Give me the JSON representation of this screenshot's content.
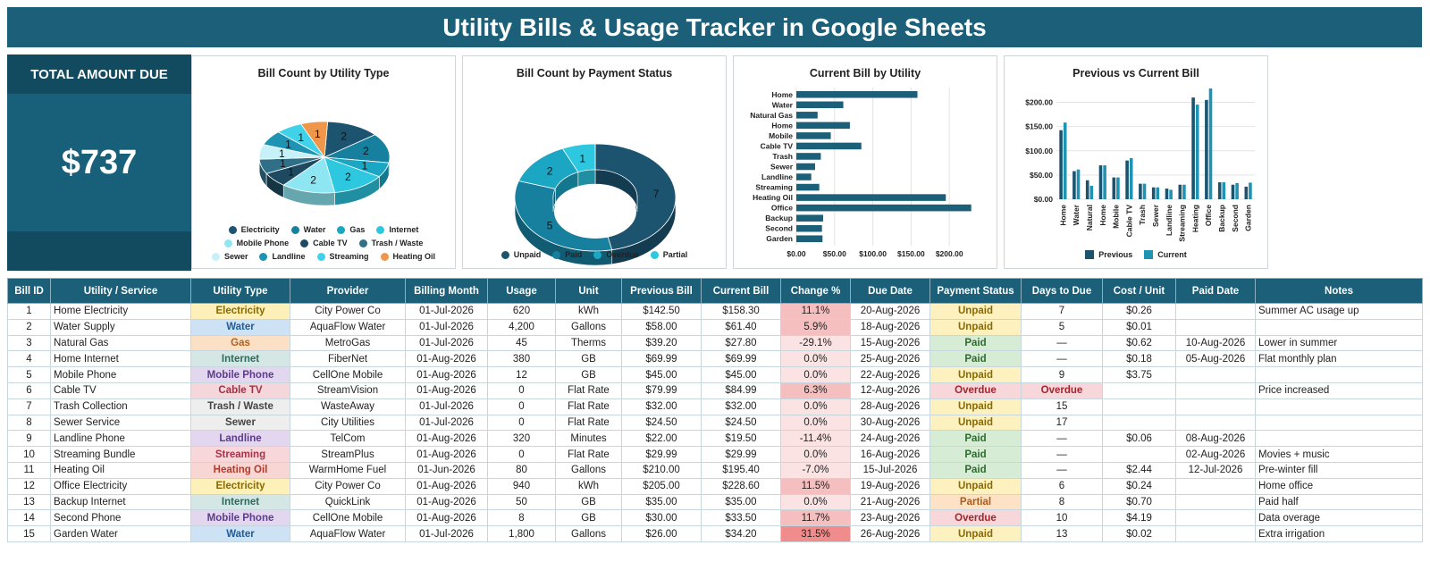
{
  "header": {
    "title": "Utility Bills & Usage Tracker in Google Sheets"
  },
  "total": {
    "label": "TOTAL AMOUNT DUE",
    "amount": "$737"
  },
  "colors": {
    "dark": "#1b5f78",
    "electricity": "#1c5470",
    "water": "#18809f",
    "gas": "#1ba6c4",
    "internet": "#2dc7e0",
    "mobile_phone": "#8ee6f3",
    "cable_tv": "#1d4a60",
    "trash": "#2f6f88",
    "sewer": "#c6f1f8",
    "landline": "#1e93b3",
    "streaming": "#3fd2e8",
    "heating_oil": "#f0964b"
  },
  "charts": {
    "utility_pie": {
      "title": "Bill Count by Utility Type",
      "legend": [
        {
          "label": "Electricity",
          "color": "#1c5470"
        },
        {
          "label": "Water",
          "color": "#18809f"
        },
        {
          "label": "Gas",
          "color": "#1ba6c4"
        },
        {
          "label": "Internet",
          "color": "#2dc7e0"
        },
        {
          "label": "Mobile Phone",
          "color": "#8ee6f3"
        },
        {
          "label": "Cable TV",
          "color": "#1d4a60"
        },
        {
          "label": "Trash / Waste",
          "color": "#2f6f88"
        },
        {
          "label": "Sewer",
          "color": "#c6f1f8"
        },
        {
          "label": "Landline",
          "color": "#1e93b3"
        },
        {
          "label": "Streaming",
          "color": "#3fd2e8"
        },
        {
          "label": "Heating Oil",
          "color": "#f0964b"
        }
      ]
    },
    "status_donut": {
      "title": "Bill Count by Payment Status",
      "legend": [
        {
          "label": "Unpaid",
          "color": "#1c5470"
        },
        {
          "label": "Paid",
          "color": "#18809f"
        },
        {
          "label": "Overdue",
          "color": "#1ba6c4"
        },
        {
          "label": "Partial",
          "color": "#2dc7e0"
        }
      ]
    },
    "current_bar": {
      "title": "Current Bill by Utility"
    },
    "prev_current": {
      "title": "Previous vs Current Bill",
      "legend": [
        {
          "label": "Previous",
          "color": "#1c5470"
        },
        {
          "label": "Current",
          "color": "#1e93b3"
        }
      ]
    }
  },
  "chart_data": [
    {
      "type": "pie",
      "title": "Bill Count by Utility Type",
      "categories": [
        "Electricity",
        "Water",
        "Gas",
        "Internet",
        "Mobile Phone",
        "Cable TV",
        "Trash / Waste",
        "Sewer",
        "Landline",
        "Streaming",
        "Heating Oil"
      ],
      "values": [
        2,
        2,
        1,
        2,
        2,
        1,
        1,
        1,
        1,
        1,
        1
      ],
      "legend": "bottom"
    },
    {
      "type": "pie",
      "title": "Bill Count by Payment Status",
      "categories": [
        "Unpaid",
        "Paid",
        "Overdue",
        "Partial"
      ],
      "values": [
        7,
        5,
        2,
        1
      ],
      "legend": "bottom"
    },
    {
      "type": "bar",
      "title": "Current Bill by Utility",
      "categories": [
        "Home",
        "Water",
        "Natural Gas",
        "Home",
        "Mobile",
        "Cable TV",
        "Trash",
        "Sewer",
        "Landline",
        "Streaming",
        "Heating Oil",
        "Office",
        "Backup",
        "Second",
        "Garden"
      ],
      "values": [
        158.3,
        61.4,
        27.8,
        69.99,
        45.0,
        84.99,
        32.0,
        24.5,
        19.5,
        29.99,
        195.4,
        228.6,
        35.0,
        33.5,
        34.2
      ],
      "xlim": [
        0,
        250
      ],
      "xticks": [
        "$0.00",
        "$50.00",
        "$100.00",
        "$150.00",
        "$200.00"
      ],
      "grid": true
    },
    {
      "type": "bar",
      "title": "Previous vs Current Bill",
      "categories": [
        "Home",
        "Water",
        "Natural",
        "Home",
        "Mobile",
        "Cable TV",
        "Trash",
        "Sewer",
        "Landline",
        "Streaming",
        "Heating",
        "Office",
        "Backup",
        "Second",
        "Garden"
      ],
      "series": [
        {
          "name": "Previous",
          "values": [
            142.5,
            58.0,
            39.2,
            69.99,
            45.0,
            79.99,
            32.0,
            24.5,
            22.0,
            29.99,
            210.0,
            205.0,
            35.0,
            30.0,
            26.0
          ]
        },
        {
          "name": "Current",
          "values": [
            158.3,
            61.4,
            27.8,
            69.99,
            45.0,
            84.99,
            32.0,
            24.5,
            19.5,
            29.99,
            195.4,
            228.6,
            35.0,
            33.5,
            34.2
          ]
        }
      ],
      "ylim": [
        0,
        225
      ],
      "yticks": [
        "$0.00",
        "$50.00",
        "$100.00",
        "$150.00",
        "$200.00"
      ],
      "legend": "bottom",
      "grid": true
    }
  ],
  "table": {
    "columns": [
      "Bill ID",
      "Utility / Service",
      "Utility Type",
      "Provider",
      "Billing Month",
      "Usage",
      "Unit",
      "Previous Bill",
      "Current Bill",
      "Change %",
      "Due Date",
      "Payment Status",
      "Days to Due",
      "Cost / Unit",
      "Paid Date",
      "Notes"
    ],
    "rows": [
      [
        "1",
        "Home Electricity",
        "Electricity",
        "City Power Co",
        "01-Jul-2026",
        "620",
        "kWh",
        "$142.50",
        "$158.30",
        "11.1%",
        "20-Aug-2026",
        "Unpaid",
        "7",
        "$0.26",
        "",
        "Summer AC usage up"
      ],
      [
        "2",
        "Water Supply",
        "Water",
        "AquaFlow Water",
        "01-Jul-2026",
        "4,200",
        "Gallons",
        "$58.00",
        "$61.40",
        "5.9%",
        "18-Aug-2026",
        "Unpaid",
        "5",
        "$0.01",
        "",
        ""
      ],
      [
        "3",
        "Natural Gas",
        "Gas",
        "MetroGas",
        "01-Jul-2026",
        "45",
        "Therms",
        "$39.20",
        "$27.80",
        "-29.1%",
        "15-Aug-2026",
        "Paid",
        "—",
        "$0.62",
        "10-Aug-2026",
        "Lower in summer"
      ],
      [
        "4",
        "Home Internet",
        "Internet",
        "FiberNet",
        "01-Aug-2026",
        "380",
        "GB",
        "$69.99",
        "$69.99",
        "0.0%",
        "25-Aug-2026",
        "Paid",
        "—",
        "$0.18",
        "05-Aug-2026",
        "Flat monthly plan"
      ],
      [
        "5",
        "Mobile Phone",
        "Mobile Phone",
        "CellOne Mobile",
        "01-Aug-2026",
        "12",
        "GB",
        "$45.00",
        "$45.00",
        "0.0%",
        "22-Aug-2026",
        "Unpaid",
        "9",
        "$3.75",
        "",
        ""
      ],
      [
        "6",
        "Cable TV",
        "Cable TV",
        "StreamVision",
        "01-Aug-2026",
        "0",
        "Flat Rate",
        "$79.99",
        "$84.99",
        "6.3%",
        "12-Aug-2026",
        "Overdue",
        "Overdue",
        "",
        "",
        "Price increased"
      ],
      [
        "7",
        "Trash Collection",
        "Trash / Waste",
        "WasteAway",
        "01-Jul-2026",
        "0",
        "Flat Rate",
        "$32.00",
        "$32.00",
        "0.0%",
        "28-Aug-2026",
        "Unpaid",
        "15",
        "",
        "",
        ""
      ],
      [
        "8",
        "Sewer Service",
        "Sewer",
        "City Utilities",
        "01-Jul-2026",
        "0",
        "Flat Rate",
        "$24.50",
        "$24.50",
        "0.0%",
        "30-Aug-2026",
        "Unpaid",
        "17",
        "",
        "",
        ""
      ],
      [
        "9",
        "Landline Phone",
        "Landline",
        "TelCom",
        "01-Aug-2026",
        "320",
        "Minutes",
        "$22.00",
        "$19.50",
        "-11.4%",
        "24-Aug-2026",
        "Paid",
        "—",
        "$0.06",
        "08-Aug-2026",
        ""
      ],
      [
        "10",
        "Streaming Bundle",
        "Streaming",
        "StreamPlus",
        "01-Aug-2026",
        "0",
        "Flat Rate",
        "$29.99",
        "$29.99",
        "0.0%",
        "16-Aug-2026",
        "Paid",
        "—",
        "",
        "02-Aug-2026",
        "Movies + music"
      ],
      [
        "11",
        "Heating Oil",
        "Heating Oil",
        "WarmHome Fuel",
        "01-Jun-2026",
        "80",
        "Gallons",
        "$210.00",
        "$195.40",
        "-7.0%",
        "15-Jul-2026",
        "Paid",
        "—",
        "$2.44",
        "12-Jul-2026",
        "Pre-winter fill"
      ],
      [
        "12",
        "Office Electricity",
        "Electricity",
        "City Power Co",
        "01-Aug-2026",
        "940",
        "kWh",
        "$205.00",
        "$228.60",
        "11.5%",
        "19-Aug-2026",
        "Unpaid",
        "6",
        "$0.24",
        "",
        "Home office"
      ],
      [
        "13",
        "Backup Internet",
        "Internet",
        "QuickLink",
        "01-Aug-2026",
        "50",
        "GB",
        "$35.00",
        "$35.00",
        "0.0%",
        "21-Aug-2026",
        "Partial",
        "8",
        "$0.70",
        "",
        "Paid half"
      ],
      [
        "14",
        "Second Phone",
        "Mobile Phone",
        "CellOne Mobile",
        "01-Aug-2026",
        "8",
        "GB",
        "$30.00",
        "$33.50",
        "11.7%",
        "23-Aug-2026",
        "Overdue",
        "10",
        "$4.19",
        "",
        "Data overage"
      ],
      [
        "15",
        "Garden Water",
        "Water",
        "AquaFlow Water",
        "01-Jul-2026",
        "1,800",
        "Gallons",
        "$26.00",
        "$34.20",
        "31.5%",
        "26-Aug-2026",
        "Unpaid",
        "13",
        "$0.02",
        "",
        "Extra irrigation"
      ]
    ]
  },
  "styles": {
    "type_badges": {
      "Electricity": {
        "bg": "#fdf0b8",
        "fg": "#8a6a00"
      },
      "Water": {
        "bg": "#cde3f5",
        "fg": "#1f5c99"
      },
      "Gas": {
        "bg": "#fbe0c6",
        "fg": "#b4601a"
      },
      "Internet": {
        "bg": "#d4e7e4",
        "fg": "#2c6b5d"
      },
      "Mobile Phone": {
        "bg": "#e2d7ee",
        "fg": "#5e3b8c"
      },
      "Cable TV": {
        "bg": "#f5d6da",
        "fg": "#9c3345"
      },
      "Trash / Waste": {
        "bg": "#eeeeee",
        "fg": "#444444"
      },
      "Sewer": {
        "bg": "#eeeeee",
        "fg": "#444444"
      },
      "Landline": {
        "bg": "#e2d7ee",
        "fg": "#5e3b8c"
      },
      "Streaming": {
        "bg": "#f8d7da",
        "fg": "#a8324a"
      },
      "Heating Oil": {
        "bg": "#f8d6d3",
        "fg": "#b5392b"
      }
    },
    "status_badges": {
      "Unpaid": {
        "bg": "#fdf1bf",
        "fg": "#8a6a00"
      },
      "Paid": {
        "bg": "#d7ecd5",
        "fg": "#2e6b2f"
      },
      "Overdue": {
        "bg": "#f8d7da",
        "fg": "#a3262f"
      },
      "Partial": {
        "bg": "#fde2c5",
        "fg": "#b05a14"
      }
    },
    "change_colors": [
      "#fbe3e3",
      "#f6bfbf",
      "#f08c8c"
    ]
  }
}
